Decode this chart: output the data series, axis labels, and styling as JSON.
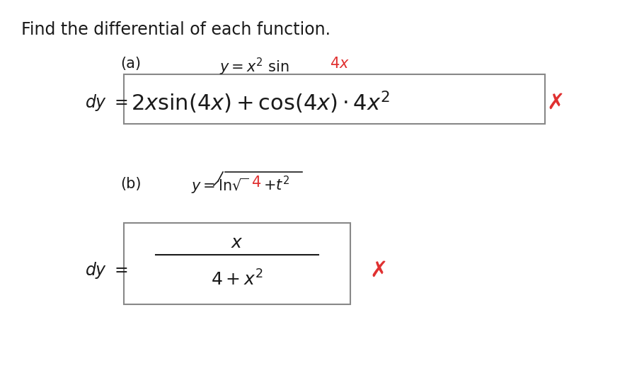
{
  "title": "Find the differential of each function.",
  "title_color": "#1a1a1a",
  "title_fontsize": 17,
  "background_color": "#ffffff",
  "part_a_label": "(a)",
  "part_a_func": "y = x$^2$ sin $\\mathit{4x}$",
  "part_a_red": "4x",
  "part_b_label": "(b)",
  "part_b_func": "y = ln\\sqrt{4 + t^2}",
  "red_color": "#e03030",
  "black_color": "#1a1a1a",
  "box_edge_color": "#888888",
  "cross_color": "#e03030"
}
